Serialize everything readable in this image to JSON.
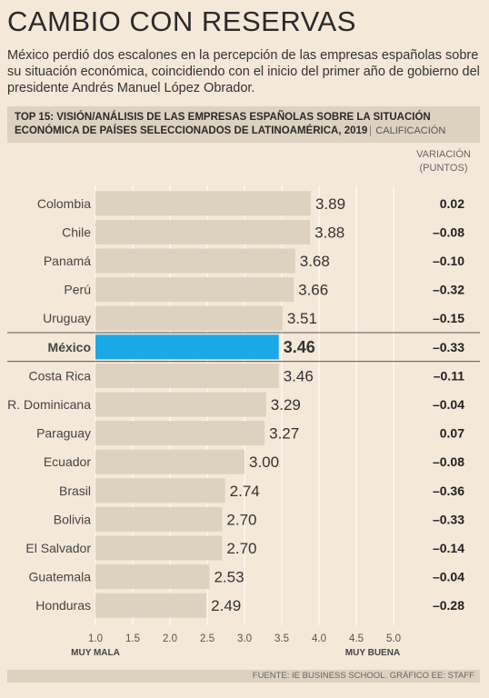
{
  "title": "CAMBIO CON RESERVAS",
  "subtitle": "México perdió dos escalones en la percepción de las empresas españolas sobre su situación económica, coincidiendo con el inicio del primer año de gobierno del presidente Andrés Manuel López Obrador.",
  "header": {
    "title_line1": "TOP 15: VISIÓN/ANÁLISIS DE LAS EMPRESAS ESPAÑOLAS SOBRE LA SITUACIÓN",
    "title_line2": "ECONÓMICA DE PAÍSES SELECCIONADOS DE LATINOAMÉRICA, 2019",
    "unit": "CALIFICACIÓN"
  },
  "variation_header": {
    "line1": "VARIACIÓN",
    "line2": "(PUNTOS)"
  },
  "footer": "FUENTE: IE BUSINESS SCHOOL. GRÁFICO EE: STAFF",
  "colors": {
    "bar": "#ddd1c0",
    "highlight_bar": "#1ba8e6",
    "background": "#f4e8d8",
    "text": "#333333"
  },
  "chart_data": {
    "type": "bar",
    "orientation": "horizontal",
    "categories": [
      "Colombia",
      "Chile",
      "Panamá",
      "Perú",
      "Uruguay",
      "México",
      "Costa Rica",
      "R. Dominicana",
      "Paraguay",
      "Ecuador",
      "Brasil",
      "Bolivia",
      "El Salvador",
      "Guatemala",
      "Honduras"
    ],
    "values": [
      3.89,
      3.88,
      3.68,
      3.66,
      3.51,
      3.46,
      3.46,
      3.29,
      3.27,
      3.0,
      2.74,
      2.7,
      2.7,
      2.53,
      2.49
    ],
    "value_labels": [
      "3.89",
      "3.88",
      "3.68",
      "3.66",
      "3.51",
      "3.46",
      "3.46",
      "3.29",
      "3.27",
      "3.00",
      "2.74",
      "2.70",
      "2.70",
      "2.53",
      "2.49"
    ],
    "variation": [
      "0.02",
      "–0.08",
      "–0.10",
      "–0.32",
      "–0.15",
      "–0.33",
      "–0.11",
      "–0.04",
      "0.07",
      "–0.08",
      "–0.36",
      "–0.33",
      "–0.14",
      "–0.04",
      "–0.28"
    ],
    "highlight": "México",
    "xlim": [
      1.0,
      5.0
    ],
    "xticks": [
      "1.0",
      "1.5",
      "2.0",
      "2.5",
      "3.0",
      "3.5",
      "4.0",
      "4.5",
      "5.0"
    ],
    "xaxis_left_label": "MUY MALA",
    "xaxis_right_label": "MUY BUENA",
    "grid": true
  }
}
